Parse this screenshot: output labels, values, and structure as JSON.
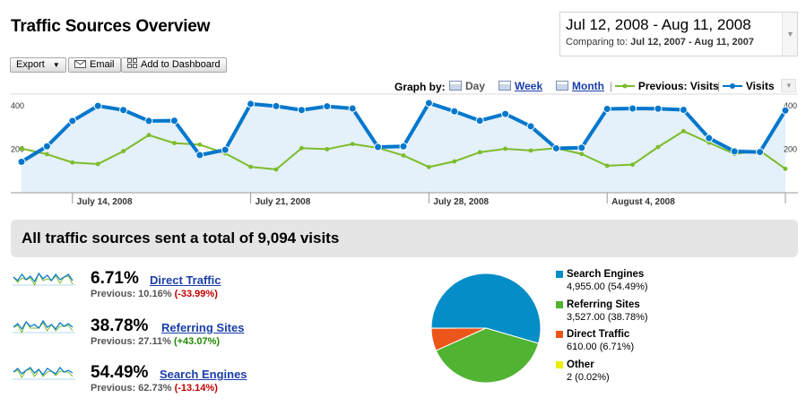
{
  "header": {
    "title": "Traffic Sources Overview",
    "date_range": "Jul 12, 2008 - Aug 11, 2008",
    "comparing_label": "Comparing to:",
    "comparing_range": "Jul 12, 2007 - Aug 11, 2007"
  },
  "toolbar": {
    "export_label": "Export",
    "email_label": "Email",
    "dashboard_label": "Add to Dashboard"
  },
  "graph_controls": {
    "graph_by_label": "Graph by:",
    "day_label": "Day",
    "week_label": "Week",
    "month_label": "Month",
    "legend_previous": "Previous: Visits",
    "legend_current": "Visits"
  },
  "colors": {
    "visits": "#0077cc",
    "previous": "#7cbc2a",
    "area_fill": "#e4f0fa",
    "search_engines": "#058dc7",
    "referring_sites": "#50b432",
    "direct_traffic": "#ed561b",
    "other": "#edef00"
  },
  "chart_data": {
    "type": "line",
    "y_ticks": [
      "400",
      "200"
    ],
    "ylim": [
      0,
      420
    ],
    "x_labels": [
      "July 14, 2008",
      "July 21, 2008",
      "July 28, 2008",
      "August 4, 2008"
    ],
    "x_label_day_index": [
      2,
      9,
      16,
      23
    ],
    "series": [
      {
        "name": "Visits",
        "values": [
          142,
          213,
          330,
          399,
          380,
          330,
          331,
          173,
          197,
          408,
          398,
          380,
          397,
          387,
          210,
          213,
          412,
          374,
          331,
          362,
          305,
          204,
          207,
          385,
          387,
          386,
          381,
          251,
          190,
          187,
          378
        ]
      },
      {
        "name": "Previous: Visits",
        "values": [
          203,
          177,
          139,
          132,
          191,
          265,
          228,
          221,
          181,
          119,
          107,
          205,
          200,
          224,
          206,
          171,
          118,
          144,
          186,
          202,
          194,
          205,
          178,
          124,
          129,
          210,
          283,
          230,
          178,
          193,
          110
        ]
      }
    ]
  },
  "summary": {
    "banner": "All traffic sources sent a total of 9,094 visits",
    "rows": [
      {
        "pct": "6.71%",
        "name": "Direct Traffic",
        "previous_label": "Previous: 10.16%",
        "change": "(-33.99%)",
        "change_sign": "neg"
      },
      {
        "pct": "38.78%",
        "name": "Referring Sites",
        "previous_label": "Previous: 27.11%",
        "change": "(+43.07%)",
        "change_sign": "pos"
      },
      {
        "pct": "54.49%",
        "name": "Search Engines",
        "previous_label": "Previous: 62.73%",
        "change": "(-13.14%)",
        "change_sign": "neg"
      }
    ]
  },
  "pie": {
    "slices": [
      {
        "name": "Search Engines",
        "value": 4955,
        "share": 54.49,
        "label": "4,955.00 (54.49%)",
        "color_key": "search_engines"
      },
      {
        "name": "Referring Sites",
        "value": 3527,
        "share": 38.78,
        "label": "3,527.00 (38.78%)",
        "color_key": "referring_sites"
      },
      {
        "name": "Direct Traffic",
        "value": 610,
        "share": 6.71,
        "label": "610.00 (6.71%)",
        "color_key": "direct_traffic"
      },
      {
        "name": "Other",
        "value": 2,
        "share": 0.02,
        "label": "2 (0.02%)",
        "color_key": "other"
      }
    ]
  }
}
